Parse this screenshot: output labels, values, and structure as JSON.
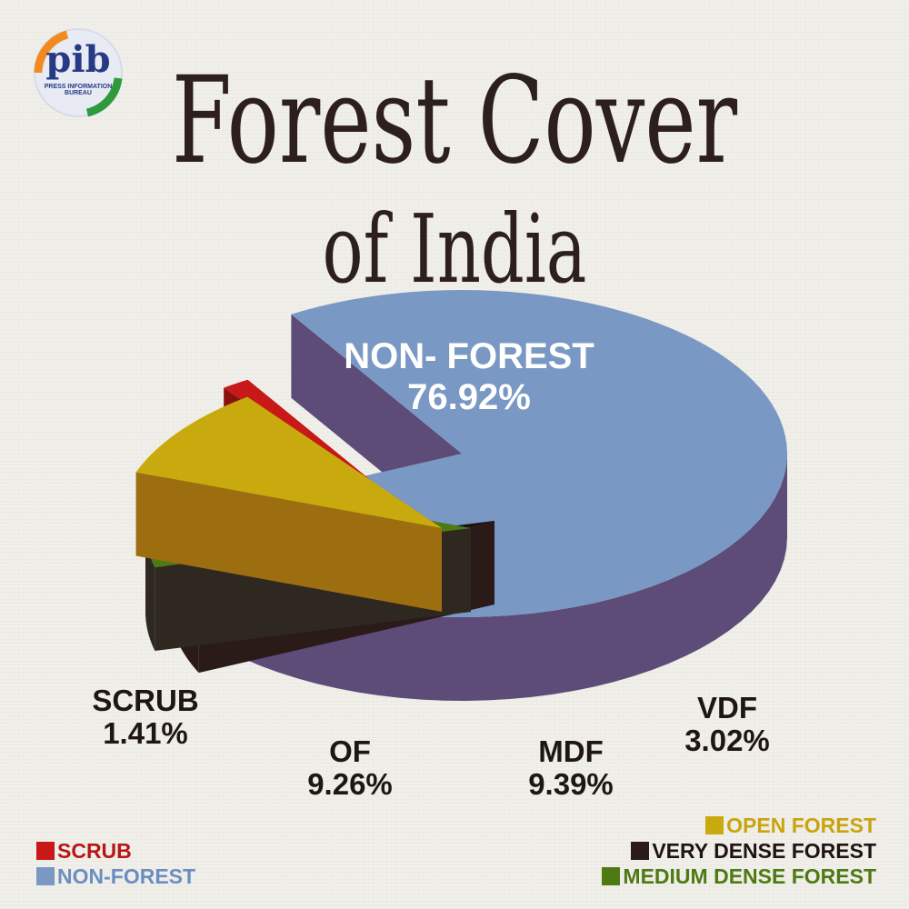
{
  "logo": {
    "text": "pib",
    "subtitle": "PRESS INFORMATION BUREAU"
  },
  "title_line_1": "Forest Cover",
  "title_line_2": "of India",
  "chart_data": {
    "type": "pie",
    "slices": [
      {
        "key": "non_forest",
        "value": 76.92,
        "label": "NON- FOREST",
        "value_label": "76.92%",
        "color": "#7a98c4",
        "side_color": "#5d4b78"
      },
      {
        "key": "vdf",
        "value": 3.02,
        "label": "VDF",
        "value_label": "3.02%",
        "color": "#171210",
        "side_color": "#2a1a18"
      },
      {
        "key": "mdf",
        "value": 9.39,
        "label": "MDF",
        "value_label": "9.39%",
        "color": "#4e7a13",
        "side_color": "#2e2820"
      },
      {
        "key": "of",
        "value": 9.26,
        "label": "OF",
        "value_label": "9.26%",
        "color": "#c9aa0e",
        "side_color": "#9c6e10"
      },
      {
        "key": "scrub",
        "value": 1.41,
        "label": "SCRUB",
        "value_label": "1.41%",
        "color": "#c81818",
        "side_color": "#8a1010"
      }
    ],
    "legend": {
      "left": [
        {
          "label": "SCRUB",
          "color": "#c81818",
          "text_color": "#b81616"
        },
        {
          "label": "NON-FOREST",
          "color": "#7a98c4",
          "text_color": "#6b8ec2"
        }
      ],
      "right": [
        {
          "label": "OPEN FOREST",
          "color": "#c9aa0e",
          "text_color": "#c9a40e"
        },
        {
          "label": "VERY DENSE FOREST",
          "color": "#2a1a18",
          "text_color": "#1e1412"
        },
        {
          "label": "MEDIUM DENSE FOREST",
          "color": "#4e7a13",
          "text_color": "#4e7a13"
        }
      ]
    }
  }
}
